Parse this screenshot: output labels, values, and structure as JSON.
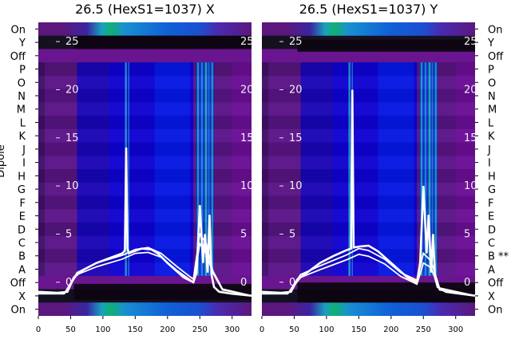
{
  "chart_data": [
    {
      "type": "heatmap",
      "title": "26.5 (HexS1=1037) X",
      "ylabel": "Dipole",
      "row_labels": [
        "On",
        "Y",
        "Off",
        "P",
        "O",
        "N",
        "M",
        "L",
        "K",
        "J",
        "I",
        "H",
        "G",
        "F",
        "E",
        "D",
        "C",
        "B",
        "A",
        "Off",
        "X",
        "On"
      ],
      "x_ticks": [
        0,
        50,
        100,
        150,
        200,
        250,
        300
      ],
      "xlim": [
        0,
        330
      ],
      "overlay_y_ticks": [
        25,
        20,
        15,
        10,
        5,
        0
      ],
      "overlay_ylim": [
        -3.5,
        27
      ],
      "overlay_series": [
        {
          "x": [
            0,
            30,
            45,
            55,
            70,
            90,
            110,
            130,
            134,
            136,
            138,
            140,
            160,
            175,
            185,
            200,
            225,
            240,
            245,
            250,
            255,
            258,
            262,
            265,
            268,
            272,
            280,
            300,
            330
          ],
          "y": [
            -1,
            -1.1,
            -1,
            0.5,
            1.3,
            2,
            2.5,
            3,
            3.3,
            14,
            3.5,
            3,
            3.5,
            3.4,
            3,
            2,
            0.5,
            0,
            1,
            8,
            2,
            5,
            1,
            7,
            0.8,
            -0.5,
            -1,
            -1.2,
            -1.4
          ]
        },
        {
          "x": [
            0,
            40,
            60,
            90,
            130,
            150,
            170,
            190,
            215,
            240,
            250,
            260,
            270,
            285,
            330
          ],
          "y": [
            -1.2,
            -1.2,
            0.8,
            1.6,
            2.4,
            3,
            3.1,
            2.6,
            1.2,
            0,
            4,
            3,
            1,
            -0.8,
            -1.4
          ]
        },
        {
          "x": [
            0,
            40,
            60,
            90,
            130,
            150,
            170,
            190,
            215,
            240,
            250,
            260,
            270,
            285,
            330
          ],
          "y": [
            -1.2,
            -1.2,
            1,
            2,
            2.8,
            3.4,
            3.6,
            3,
            1.6,
            0.3,
            5,
            4,
            1.2,
            -0.7,
            -1.4
          ]
        }
      ]
    },
    {
      "type": "heatmap",
      "title": "26.5 (HexS1=1037) Y",
      "row_labels": [
        "On",
        "Y",
        "Off",
        "P",
        "O",
        "N",
        "M",
        "L",
        "K",
        "J",
        "I",
        "H",
        "G",
        "F",
        "E",
        "D",
        "C",
        "B **",
        "A",
        "Off",
        "X",
        "On"
      ],
      "x_ticks": [
        0,
        50,
        100,
        150,
        200,
        250,
        300
      ],
      "xlim": [
        0,
        330
      ],
      "overlay_y_ticks": [
        25,
        20,
        15,
        10,
        5,
        0
      ],
      "overlay_ylim": [
        -3.5,
        27
      ],
      "overlay_series": [
        {
          "x": [
            0,
            30,
            45,
            55,
            70,
            90,
            110,
            130,
            138,
            140,
            142,
            150,
            165,
            180,
            200,
            225,
            240,
            245,
            250,
            255,
            258,
            262,
            265,
            268,
            272,
            285,
            330
          ],
          "y": [
            -1,
            -1.1,
            -1,
            0.3,
            1,
            2,
            2.7,
            3.3,
            3.5,
            20,
            3.6,
            3.7,
            3.8,
            3.2,
            2,
            0.5,
            0,
            2,
            10,
            3,
            7,
            1,
            5,
            0.5,
            -0.5,
            -1,
            -1.4
          ]
        },
        {
          "x": [
            0,
            40,
            60,
            90,
            130,
            150,
            165,
            190,
            215,
            240,
            250,
            262,
            275,
            330
          ],
          "y": [
            -1.2,
            -1.2,
            0.5,
            1.3,
            2.3,
            2.9,
            2.7,
            1.9,
            0.6,
            -0.2,
            2,
            1.5,
            -0.8,
            -1.4
          ]
        },
        {
          "x": [
            0,
            40,
            60,
            90,
            130,
            150,
            165,
            190,
            215,
            240,
            250,
            262,
            275,
            330
          ],
          "y": [
            -1.2,
            -1.2,
            0.8,
            1.7,
            2.8,
            3.5,
            3.3,
            2.4,
            1,
            0.2,
            3,
            2.2,
            -0.6,
            -1.4
          ]
        }
      ]
    }
  ]
}
